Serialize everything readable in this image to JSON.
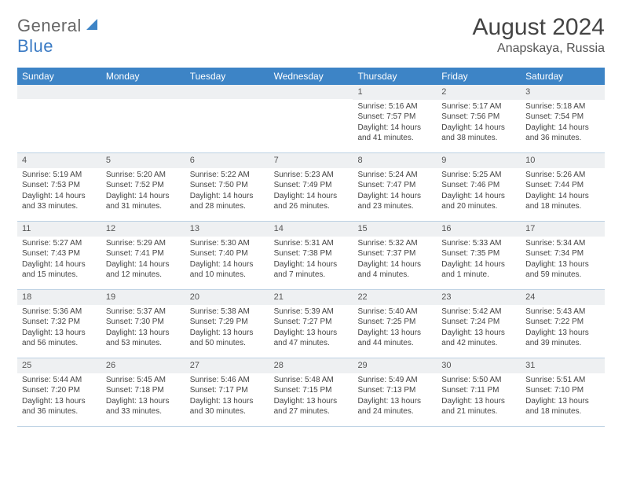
{
  "logo": {
    "general": "General",
    "blue": "Blue"
  },
  "title": "August 2024",
  "location": "Anapskaya, Russia",
  "colors": {
    "header_bg": "#3d84c6",
    "band_bg": "#eef0f2",
    "week_border": "#bcd1e3",
    "text": "#444444"
  },
  "dayhdrs": [
    "Sunday",
    "Monday",
    "Tuesday",
    "Wednesday",
    "Thursday",
    "Friday",
    "Saturday"
  ],
  "weeks": [
    [
      {
        "empty": true
      },
      {
        "empty": true
      },
      {
        "empty": true
      },
      {
        "empty": true
      },
      {
        "n": "1",
        "sr": "Sunrise: 5:16 AM",
        "ss": "Sunset: 7:57 PM",
        "d1": "Daylight: 14 hours",
        "d2": "and 41 minutes."
      },
      {
        "n": "2",
        "sr": "Sunrise: 5:17 AM",
        "ss": "Sunset: 7:56 PM",
        "d1": "Daylight: 14 hours",
        "d2": "and 38 minutes."
      },
      {
        "n": "3",
        "sr": "Sunrise: 5:18 AM",
        "ss": "Sunset: 7:54 PM",
        "d1": "Daylight: 14 hours",
        "d2": "and 36 minutes."
      }
    ],
    [
      {
        "n": "4",
        "sr": "Sunrise: 5:19 AM",
        "ss": "Sunset: 7:53 PM",
        "d1": "Daylight: 14 hours",
        "d2": "and 33 minutes."
      },
      {
        "n": "5",
        "sr": "Sunrise: 5:20 AM",
        "ss": "Sunset: 7:52 PM",
        "d1": "Daylight: 14 hours",
        "d2": "and 31 minutes."
      },
      {
        "n": "6",
        "sr": "Sunrise: 5:22 AM",
        "ss": "Sunset: 7:50 PM",
        "d1": "Daylight: 14 hours",
        "d2": "and 28 minutes."
      },
      {
        "n": "7",
        "sr": "Sunrise: 5:23 AM",
        "ss": "Sunset: 7:49 PM",
        "d1": "Daylight: 14 hours",
        "d2": "and 26 minutes."
      },
      {
        "n": "8",
        "sr": "Sunrise: 5:24 AM",
        "ss": "Sunset: 7:47 PM",
        "d1": "Daylight: 14 hours",
        "d2": "and 23 minutes."
      },
      {
        "n": "9",
        "sr": "Sunrise: 5:25 AM",
        "ss": "Sunset: 7:46 PM",
        "d1": "Daylight: 14 hours",
        "d2": "and 20 minutes."
      },
      {
        "n": "10",
        "sr": "Sunrise: 5:26 AM",
        "ss": "Sunset: 7:44 PM",
        "d1": "Daylight: 14 hours",
        "d2": "and 18 minutes."
      }
    ],
    [
      {
        "n": "11",
        "sr": "Sunrise: 5:27 AM",
        "ss": "Sunset: 7:43 PM",
        "d1": "Daylight: 14 hours",
        "d2": "and 15 minutes."
      },
      {
        "n": "12",
        "sr": "Sunrise: 5:29 AM",
        "ss": "Sunset: 7:41 PM",
        "d1": "Daylight: 14 hours",
        "d2": "and 12 minutes."
      },
      {
        "n": "13",
        "sr": "Sunrise: 5:30 AM",
        "ss": "Sunset: 7:40 PM",
        "d1": "Daylight: 14 hours",
        "d2": "and 10 minutes."
      },
      {
        "n": "14",
        "sr": "Sunrise: 5:31 AM",
        "ss": "Sunset: 7:38 PM",
        "d1": "Daylight: 14 hours",
        "d2": "and 7 minutes."
      },
      {
        "n": "15",
        "sr": "Sunrise: 5:32 AM",
        "ss": "Sunset: 7:37 PM",
        "d1": "Daylight: 14 hours",
        "d2": "and 4 minutes."
      },
      {
        "n": "16",
        "sr": "Sunrise: 5:33 AM",
        "ss": "Sunset: 7:35 PM",
        "d1": "Daylight: 14 hours",
        "d2": "and 1 minute."
      },
      {
        "n": "17",
        "sr": "Sunrise: 5:34 AM",
        "ss": "Sunset: 7:34 PM",
        "d1": "Daylight: 13 hours",
        "d2": "and 59 minutes."
      }
    ],
    [
      {
        "n": "18",
        "sr": "Sunrise: 5:36 AM",
        "ss": "Sunset: 7:32 PM",
        "d1": "Daylight: 13 hours",
        "d2": "and 56 minutes."
      },
      {
        "n": "19",
        "sr": "Sunrise: 5:37 AM",
        "ss": "Sunset: 7:30 PM",
        "d1": "Daylight: 13 hours",
        "d2": "and 53 minutes."
      },
      {
        "n": "20",
        "sr": "Sunrise: 5:38 AM",
        "ss": "Sunset: 7:29 PM",
        "d1": "Daylight: 13 hours",
        "d2": "and 50 minutes."
      },
      {
        "n": "21",
        "sr": "Sunrise: 5:39 AM",
        "ss": "Sunset: 7:27 PM",
        "d1": "Daylight: 13 hours",
        "d2": "and 47 minutes."
      },
      {
        "n": "22",
        "sr": "Sunrise: 5:40 AM",
        "ss": "Sunset: 7:25 PM",
        "d1": "Daylight: 13 hours",
        "d2": "and 44 minutes."
      },
      {
        "n": "23",
        "sr": "Sunrise: 5:42 AM",
        "ss": "Sunset: 7:24 PM",
        "d1": "Daylight: 13 hours",
        "d2": "and 42 minutes."
      },
      {
        "n": "24",
        "sr": "Sunrise: 5:43 AM",
        "ss": "Sunset: 7:22 PM",
        "d1": "Daylight: 13 hours",
        "d2": "and 39 minutes."
      }
    ],
    [
      {
        "n": "25",
        "sr": "Sunrise: 5:44 AM",
        "ss": "Sunset: 7:20 PM",
        "d1": "Daylight: 13 hours",
        "d2": "and 36 minutes."
      },
      {
        "n": "26",
        "sr": "Sunrise: 5:45 AM",
        "ss": "Sunset: 7:18 PM",
        "d1": "Daylight: 13 hours",
        "d2": "and 33 minutes."
      },
      {
        "n": "27",
        "sr": "Sunrise: 5:46 AM",
        "ss": "Sunset: 7:17 PM",
        "d1": "Daylight: 13 hours",
        "d2": "and 30 minutes."
      },
      {
        "n": "28",
        "sr": "Sunrise: 5:48 AM",
        "ss": "Sunset: 7:15 PM",
        "d1": "Daylight: 13 hours",
        "d2": "and 27 minutes."
      },
      {
        "n": "29",
        "sr": "Sunrise: 5:49 AM",
        "ss": "Sunset: 7:13 PM",
        "d1": "Daylight: 13 hours",
        "d2": "and 24 minutes."
      },
      {
        "n": "30",
        "sr": "Sunrise: 5:50 AM",
        "ss": "Sunset: 7:11 PM",
        "d1": "Daylight: 13 hours",
        "d2": "and 21 minutes."
      },
      {
        "n": "31",
        "sr": "Sunrise: 5:51 AM",
        "ss": "Sunset: 7:10 PM",
        "d1": "Daylight: 13 hours",
        "d2": "and 18 minutes."
      }
    ]
  ]
}
